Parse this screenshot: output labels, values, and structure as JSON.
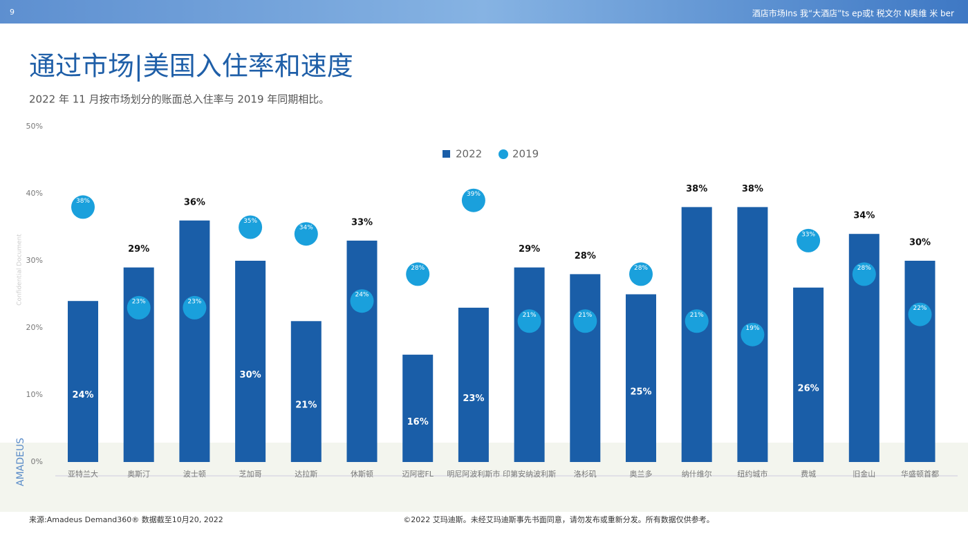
{
  "header": {
    "page": "9",
    "text": "酒店市场Ins 我“大酒店”ts ep或t 税文尔 N奥维 米 ber"
  },
  "chart_data": {
    "type": "bar",
    "title": "通过市场|美国入住率和速度",
    "subtitle": "2022 年 11 月按市场划分的账面总入住率与 2019 年同期相比。",
    "categories": [
      "亚特兰大",
      "奥斯汀",
      "波士顿",
      "芝加哥",
      "达拉斯",
      "休斯顿",
      "迈阿密FL",
      "明尼阿波利斯市",
      "印第安纳波利斯",
      "洛杉矶",
      "奥兰多",
      "纳什维尔",
      "纽约城市",
      "费城",
      "旧金山",
      "华盛顿首都"
    ],
    "series": [
      {
        "name": "2022",
        "color": "#1a5ea8",
        "values": [
          24,
          29,
          36,
          30,
          21,
          33,
          16,
          23,
          29,
          28,
          25,
          38,
          38,
          26,
          34,
          30
        ],
        "value_labels": [
          "24%",
          "29%",
          "36%",
          "30%",
          "21%",
          "33%",
          "16%",
          "23%",
          "29%",
          "28%",
          "25%",
          "38%",
          "38%",
          "26%",
          "34%",
          "30%"
        ]
      },
      {
        "name": "2019",
        "color": "#1aa0dc",
        "values": [
          38,
          23,
          23,
          35,
          34,
          24,
          28,
          39,
          21,
          21,
          28,
          21,
          19,
          33,
          28,
          22
        ],
        "value_labels": [
          "38%",
          "23%",
          "23%",
          "35%",
          "34%",
          "24%",
          "28%",
          "39%",
          "21%",
          "21%",
          "28%",
          "21%",
          "19%",
          "33%",
          "28%",
          "22%"
        ]
      }
    ],
    "ylim": [
      0,
      50
    ],
    "yticks": [
      {
        "value": 0,
        "label": "0%"
      },
      {
        "value": 10,
        "label": "10%"
      },
      {
        "value": 20,
        "label": "20%"
      },
      {
        "value": 30,
        "label": "30%"
      },
      {
        "value": 40,
        "label": "40%"
      },
      {
        "value": 50,
        "label": "50%"
      }
    ]
  },
  "side": {
    "brand": "AMADEUS",
    "confidential": "Confidential Document"
  },
  "footer": {
    "source": "来源:Amadeus Demand360® 数据截至10月20, 2022",
    "copyright": "©2022 艾玛迪斯。未经艾玛迪斯事先书面同意，请勿发布或重新分发。所有数据仅供参考。"
  }
}
